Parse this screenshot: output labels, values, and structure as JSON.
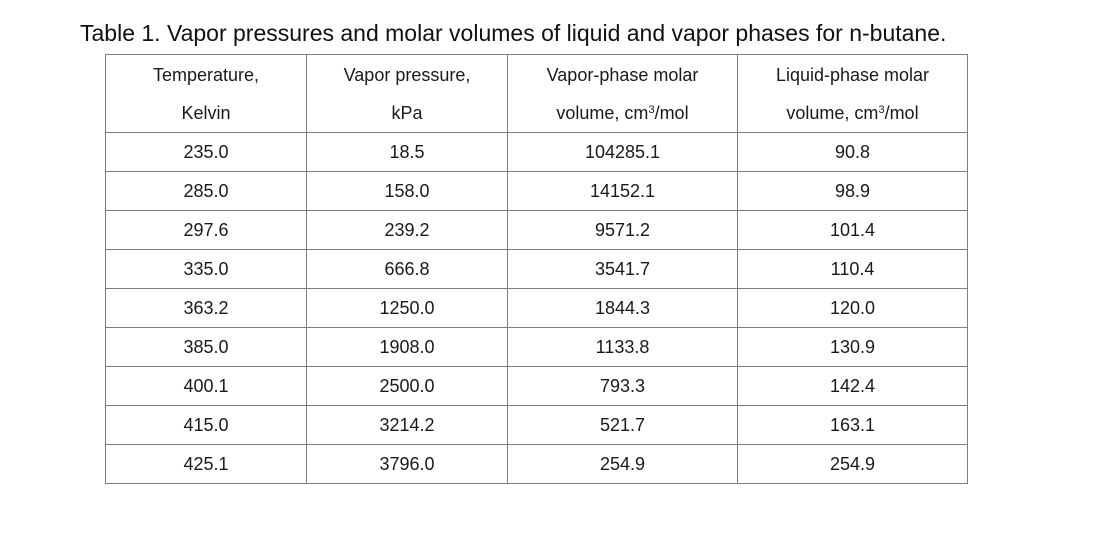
{
  "caption": "Table 1. Vapor pressures and molar volumes of liquid and vapor phases for n-butane.",
  "table": {
    "headers": [
      {
        "line1": "Temperature,",
        "line2": "Kelvin"
      },
      {
        "line1": "Vapor pressure,",
        "line2": "kPa"
      },
      {
        "line1": "Vapor-phase molar",
        "line2_pre": "volume, cm",
        "line2_sup": "3",
        "line2_post": "/mol"
      },
      {
        "line1": "Liquid-phase molar",
        "line2_pre": "volume, cm",
        "line2_sup": "3",
        "line2_post": "/mol"
      }
    ],
    "rows": [
      [
        "235.0",
        "18.5",
        "104285.1",
        "90.8"
      ],
      [
        "285.0",
        "158.0",
        "14152.1",
        "98.9"
      ],
      [
        "297.6",
        "239.2",
        "9571.2",
        "101.4"
      ],
      [
        "335.0",
        "666.8",
        "3541.7",
        "110.4"
      ],
      [
        "363.2",
        "1250.0",
        "1844.3",
        "120.0"
      ],
      [
        "385.0",
        "1908.0",
        "1133.8",
        "130.9"
      ],
      [
        "400.1",
        "2500.0",
        "793.3",
        "142.4"
      ],
      [
        "415.0",
        "3214.2",
        "521.7",
        "163.1"
      ],
      [
        "425.1",
        "3796.0",
        "254.9",
        "254.9"
      ]
    ]
  }
}
